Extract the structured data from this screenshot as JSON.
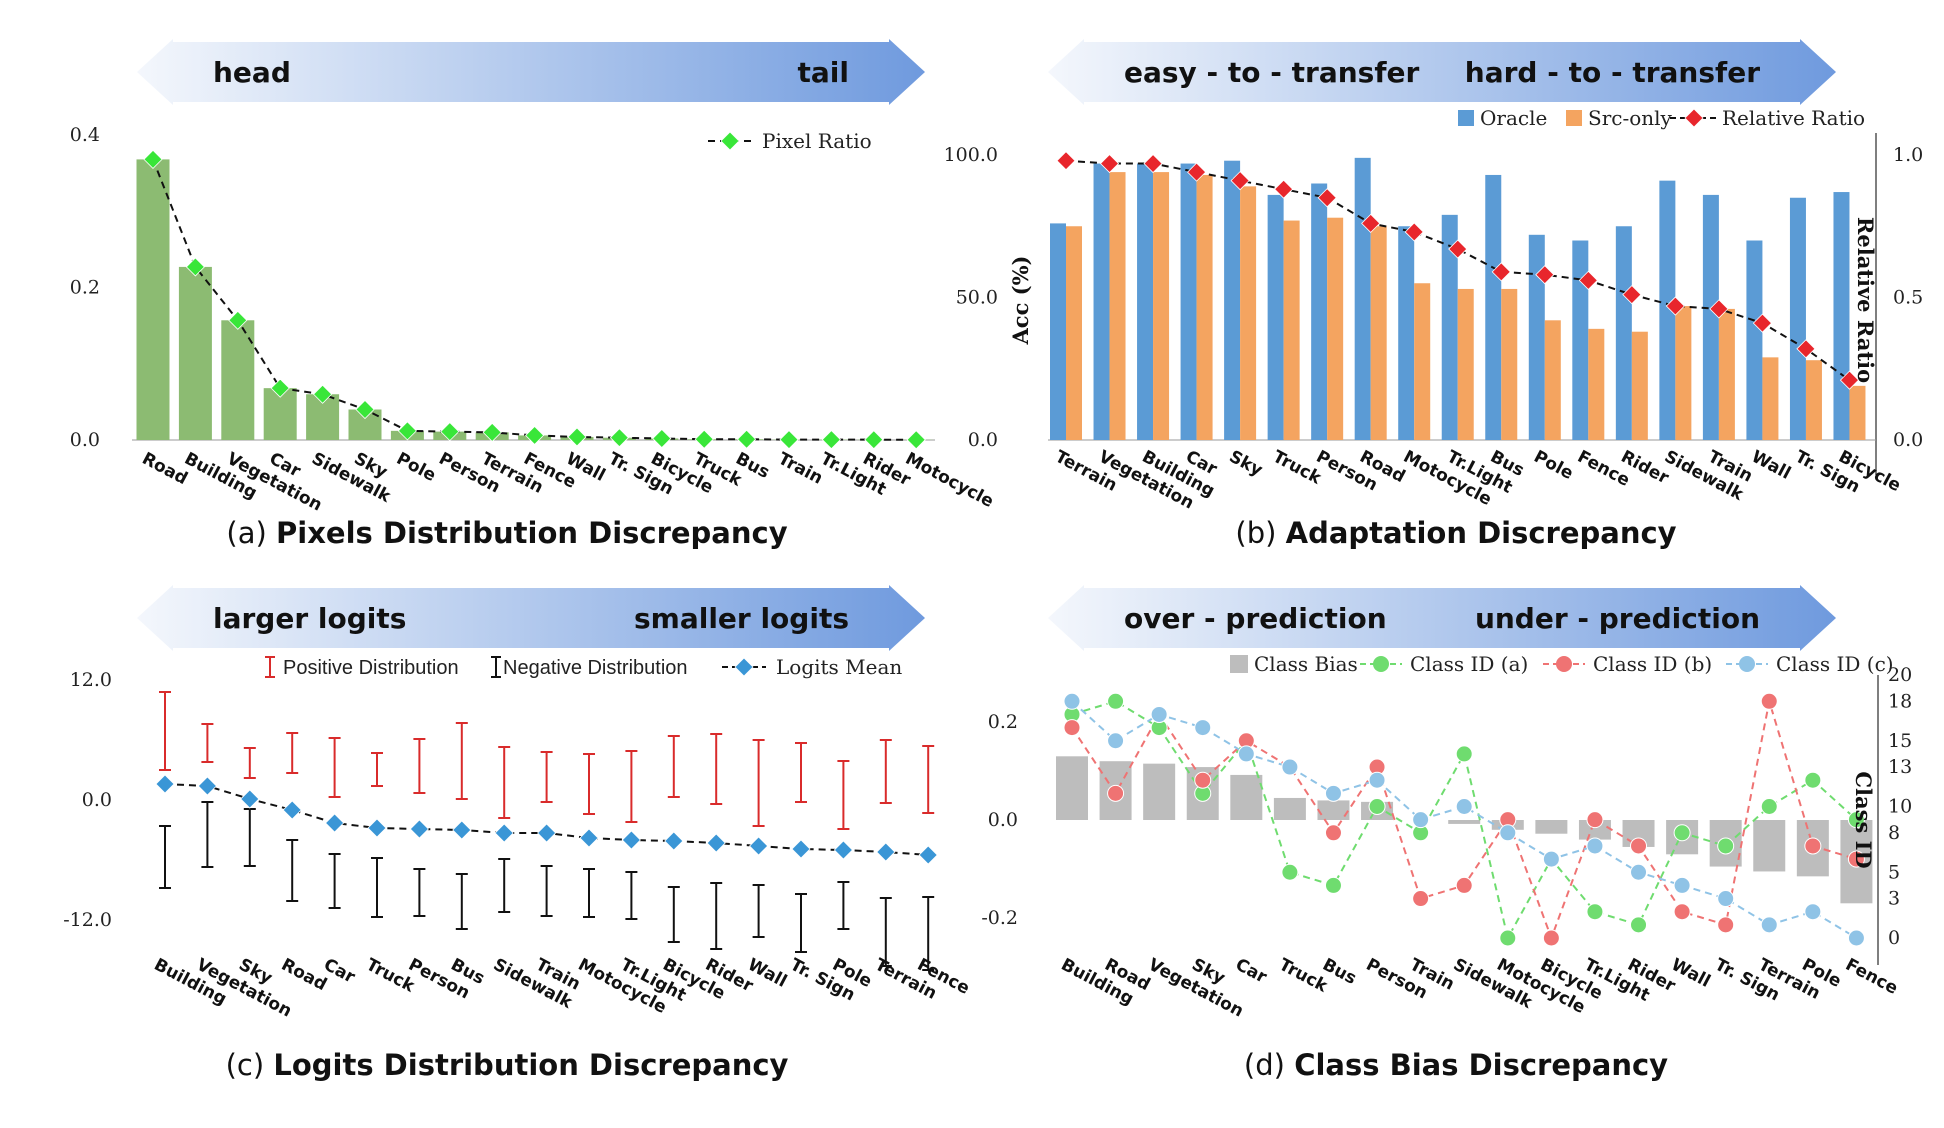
{
  "colors": {
    "arrow_light": "#eef3fb",
    "arrow_dark": "#6f9ade",
    "green_bar": "#8cbb72",
    "green_marker": "#39e639",
    "oracle": "#5b9bd5",
    "src_only": "#f4a460",
    "red_marker": "#e8262c",
    "pos_err": "#d92b2b",
    "neg_err": "#111111",
    "logit_mean": "#3a96d6",
    "bias_bar": "#bdbdbd",
    "id_a": "#6fdc6f",
    "id_b": "#ef7373",
    "id_c": "#8fc3e6"
  },
  "chart_data": [
    {
      "panel": "a",
      "type": "bar",
      "arrow": {
        "left": "head",
        "right": "tail"
      },
      "caption": {
        "letter": "(a)",
        "text": "Pixels Distribution Discrepancy"
      },
      "categories": [
        "Road",
        "Building",
        "Vegetation",
        "Car",
        "Sidewalk",
        "Sky",
        "Pole",
        "Person",
        "Terrain",
        "Fence",
        "Wall",
        "Tr. Sign",
        "Bicycle",
        "Truck",
        "Bus",
        "Train",
        "Tr.Light",
        "Rider",
        "Motocycle"
      ],
      "series": [
        {
          "name": "",
          "values": [
            0.368,
            0.227,
            0.157,
            0.068,
            0.06,
            0.04,
            0.012,
            0.011,
            0.01,
            0.006,
            0.004,
            0.003,
            0.002,
            0.001,
            0.001,
            0.0005,
            0.0005,
            0.0004,
            0.0003
          ]
        },
        {
          "name": "Pixel Ratio",
          "values": [
            0.368,
            0.227,
            0.157,
            0.068,
            0.06,
            0.04,
            0.012,
            0.011,
            0.01,
            0.006,
            0.004,
            0.003,
            0.002,
            0.001,
            0.001,
            0.0005,
            0.0005,
            0.0004,
            0.0003
          ]
        }
      ],
      "yticks": [
        "0.4",
        "0.2",
        "0.0"
      ],
      "ylim": [
        0,
        0.4
      ]
    },
    {
      "panel": "b",
      "type": "bar",
      "arrow": {
        "left": "easy - to - transfer",
        "right": "hard - to - transfer"
      },
      "caption": {
        "letter": "(b)",
        "text": "Adaptation Discrepancy"
      },
      "categories": [
        "Terrain",
        "Vegetation",
        "Building",
        "Car",
        "Sky",
        "Truck",
        "Person",
        "Road",
        "Motocycle",
        "Tr.Light",
        "Bus",
        "Pole",
        "Fence",
        "Rider",
        "Sidewalk",
        "Train",
        "Wall",
        "Tr. Sign",
        "Bicycle"
      ],
      "series": [
        {
          "name": "Oracle",
          "values": [
            76,
            97,
            97,
            97,
            98,
            86,
            90,
            99,
            75,
            79,
            93,
            72,
            70,
            75,
            91,
            86,
            70,
            85,
            87
          ]
        },
        {
          "name": "Src-only",
          "values": [
            75,
            94,
            94,
            93,
            89,
            77,
            78,
            75,
            55,
            53,
            53,
            42,
            39,
            38,
            47,
            46,
            29,
            28,
            19
          ]
        },
        {
          "name": "Relative Ratio",
          "values": [
            0.98,
            0.97,
            0.97,
            0.94,
            0.91,
            0.88,
            0.85,
            0.76,
            0.73,
            0.67,
            0.59,
            0.58,
            0.56,
            0.51,
            0.47,
            0.46,
            0.41,
            0.32,
            0.21
          ]
        }
      ],
      "ylabel": "Acc (%)",
      "ylabel_right": "Relative Ratio",
      "yticks": [
        "100.0",
        "50.0",
        "0.0"
      ],
      "yticks_right": [
        "1.0",
        "0.5",
        "0.0"
      ],
      "ylim": [
        0,
        100
      ],
      "ylim_right": [
        0,
        1
      ]
    },
    {
      "panel": "c",
      "type": "scatter",
      "arrow": {
        "left": "larger logits",
        "right": "smaller logits"
      },
      "caption": {
        "letter": "(c)",
        "text": "Logits Distribution Discrepancy"
      },
      "categories": [
        "Building",
        "Vegetation",
        "Sky",
        "Road",
        "Car",
        "Truck",
        "Person",
        "Bus",
        "Sidewalk",
        "Train",
        "Motocycle",
        "Tr.Light",
        "Bicycle",
        "Rider",
        "Wall",
        "Tr. Sign",
        "Pole",
        "Terrain",
        "Fence"
      ],
      "series": [
        {
          "name": "Positive Distribution",
          "low": [
            3.0,
            3.8,
            2.2,
            2.7,
            0.3,
            1.4,
            0.7,
            0.1,
            -1.8,
            -0.2,
            -1.4,
            -2.2,
            0.3,
            -0.4,
            -2.6,
            -0.2,
            -2.9,
            -0.3,
            -1.3
          ],
          "high": [
            10.8,
            7.6,
            5.2,
            6.7,
            6.2,
            4.7,
            6.1,
            7.7,
            5.3,
            4.8,
            4.6,
            4.9,
            6.4,
            6.6,
            6.0,
            5.7,
            3.9,
            6.0,
            5.4
          ]
        },
        {
          "name": "Negative Distribution",
          "low": [
            -8.8,
            -6.7,
            -6.6,
            -10.1,
            -10.8,
            -11.7,
            -11.6,
            -12.9,
            -11.2,
            -11.6,
            -11.7,
            -11.9,
            -14.2,
            -14.9,
            -13.7,
            -15.2,
            -12.9,
            -16.6,
            -17.0
          ],
          "high": [
            -2.6,
            -0.2,
            -0.9,
            -4.0,
            -5.4,
            -5.8,
            -6.9,
            -7.4,
            -5.9,
            -6.6,
            -6.9,
            -7.2,
            -8.7,
            -8.3,
            -8.5,
            -9.4,
            -8.2,
            -9.8,
            -9.7
          ]
        },
        {
          "name": "Logits Mean",
          "values": [
            1.6,
            1.4,
            0.1,
            -1.0,
            -2.3,
            -2.8,
            -2.9,
            -3.0,
            -3.3,
            -3.3,
            -3.8,
            -4.0,
            -4.1,
            -4.3,
            -4.6,
            -4.9,
            -5.0,
            -5.2,
            -5.5
          ]
        }
      ],
      "yticks": [
        "12.0",
        "0.0",
        "-12.0"
      ],
      "ylim": [
        -12,
        12
      ]
    },
    {
      "panel": "d",
      "type": "bar",
      "arrow": {
        "left": "over - prediction",
        "right": "under - prediction"
      },
      "caption": {
        "letter": "(d)",
        "text": "Class Bias Discrepancy"
      },
      "categories": [
        "Building",
        "Road",
        "Vegetation",
        "Sky",
        "Car",
        "Truck",
        "Bus",
        "Person",
        "Train",
        "Sidewalk",
        "Motocycle",
        "Bicycle",
        "Tr.Light",
        "Rider",
        "Wall",
        "Tr. Sign",
        "Terrain",
        "Pole",
        "Fence"
      ],
      "series": [
        {
          "name": "Class Bias",
          "values": [
            0.13,
            0.12,
            0.115,
            0.108,
            0.092,
            0.045,
            0.04,
            0.037,
            0.0,
            -0.008,
            -0.02,
            -0.028,
            -0.04,
            -0.055,
            -0.07,
            -0.095,
            -0.105,
            -0.115,
            -0.17
          ]
        },
        {
          "name": "Class ID (a)",
          "values": [
            17,
            18,
            16,
            11,
            15,
            5,
            4,
            10,
            8,
            14,
            0,
            6,
            2,
            1,
            8,
            7,
            10,
            12,
            9
          ]
        },
        {
          "name": "Class ID (b)",
          "values": [
            16,
            11,
            17,
            12,
            15,
            13,
            8,
            13,
            3,
            4,
            9,
            0,
            9,
            7,
            2,
            1,
            18,
            7,
            6
          ]
        },
        {
          "name": "Class ID (c)",
          "values": [
            18,
            15,
            17,
            16,
            14,
            13,
            11,
            12,
            9,
            10,
            8,
            6,
            7,
            5,
            4,
            3,
            1,
            2,
            0
          ]
        }
      ],
      "yticks": [
        "0.2",
        "0.0",
        "-0.2"
      ],
      "yticks_right": [
        "20",
        "18",
        "15",
        "13",
        "10",
        "8",
        "5",
        "3",
        "0"
      ],
      "ylabel_right": "Class ID",
      "ylim": [
        -0.25,
        0.25
      ],
      "ylim_right": [
        0,
        20
      ]
    }
  ]
}
